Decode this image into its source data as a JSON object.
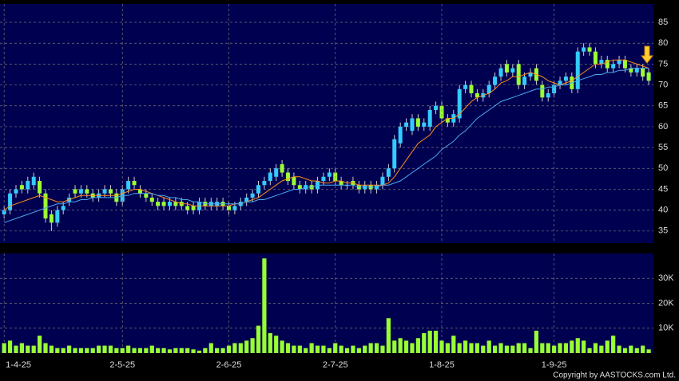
{
  "chart_data": [
    {
      "type": "candlestick",
      "open": [
        39,
        40,
        44,
        46,
        45,
        46,
        47,
        44,
        39,
        37,
        40,
        42,
        45,
        44,
        45,
        44,
        43,
        44,
        45,
        44,
        42,
        45,
        47,
        45,
        44,
        43,
        42,
        42,
        41,
        42,
        42,
        41,
        41,
        40,
        42,
        41,
        41,
        42,
        41,
        40,
        41,
        42,
        43,
        44,
        46,
        47,
        48,
        51,
        49,
        48,
        46,
        45,
        46,
        45,
        47,
        48,
        49,
        47,
        46,
        47,
        46,
        45,
        46,
        45,
        46,
        48,
        50,
        56,
        60,
        59,
        62,
        60,
        60,
        64,
        65,
        62,
        61,
        62,
        69,
        70,
        68,
        67,
        68,
        70,
        72,
        75,
        73,
        75,
        70,
        72,
        74,
        70,
        67,
        68,
        70,
        71,
        72,
        69,
        78,
        79,
        78,
        75,
        76,
        74,
        75,
        76,
        74,
        73,
        74,
        73
      ],
      "high": [
        41,
        45,
        46,
        47,
        48,
        49,
        48,
        45,
        40,
        41,
        42,
        44,
        46,
        46,
        46,
        45,
        45,
        46,
        46,
        45,
        46,
        48,
        48,
        46,
        45,
        44,
        43,
        43,
        43,
        43,
        43,
        42,
        42,
        43,
        43,
        43,
        43,
        43,
        42,
        42,
        43,
        44,
        45,
        47,
        48,
        50,
        51,
        52,
        50,
        49,
        47,
        47,
        47,
        48,
        49,
        50,
        50,
        48,
        47,
        48,
        47,
        47,
        47,
        47,
        49,
        51,
        58,
        61,
        62,
        63,
        63,
        62,
        65,
        66,
        66,
        63,
        64,
        70,
        71,
        71,
        69,
        69,
        71,
        73,
        75,
        76,
        75,
        76,
        73,
        74,
        75,
        71,
        69,
        71,
        72,
        73,
        73,
        79,
        80,
        80,
        79,
        77,
        77,
        76,
        77,
        77,
        75,
        75,
        75,
        74
      ],
      "low": [
        38,
        39,
        43,
        44,
        44,
        45,
        43,
        37,
        35,
        36,
        39,
        41,
        43,
        43,
        43,
        42,
        42,
        43,
        43,
        41,
        41,
        44,
        45,
        43,
        42,
        41,
        40,
        40,
        40,
        40,
        40,
        39,
        39,
        39,
        40,
        40,
        40,
        40,
        39,
        39,
        40,
        41,
        42,
        43,
        45,
        46,
        47,
        48,
        46,
        45,
        44,
        44,
        44,
        44,
        46,
        47,
        46,
        45,
        45,
        45,
        44,
        44,
        44,
        44,
        45,
        47,
        49,
        55,
        59,
        58,
        59,
        59,
        59,
        63,
        61,
        60,
        60,
        61,
        68,
        67,
        66,
        66,
        67,
        69,
        71,
        72,
        72,
        69,
        69,
        71,
        70,
        66,
        66,
        67,
        69,
        70,
        68,
        68,
        77,
        77,
        74,
        74,
        73,
        73,
        74,
        73,
        72,
        72,
        71,
        70
      ],
      "close": [
        40,
        44,
        45,
        45,
        47,
        48,
        44,
        38,
        37,
        40,
        41,
        43,
        44,
        45,
        44,
        43,
        44,
        45,
        44,
        42,
        45,
        47,
        46,
        44,
        43,
        42,
        41,
        41,
        42,
        41,
        41,
        40,
        40,
        42,
        41,
        42,
        42,
        41,
        40,
        41,
        42,
        43,
        44,
        46,
        47,
        49,
        50,
        49,
        47,
        46,
        45,
        46,
        45,
        47,
        48,
        49,
        47,
        46,
        46,
        46,
        45,
        46,
        45,
        46,
        48,
        50,
        57,
        60,
        61,
        62,
        60,
        61,
        64,
        65,
        62,
        61,
        63,
        69,
        70,
        68,
        67,
        68,
        70,
        72,
        74,
        73,
        74,
        70,
        72,
        73,
        71,
        67,
        68,
        70,
        71,
        72,
        69,
        78,
        79,
        78,
        75,
        76,
        74,
        75,
        76,
        74,
        73,
        74,
        72,
        71
      ],
      "lines": [
        {
          "color": "#ff8c1a",
          "values": [
            40,
            41,
            41.5,
            42,
            42.5,
            43,
            43.5,
            43,
            42.5,
            42,
            42,
            42.5,
            43,
            43.5,
            43.5,
            43.5,
            43.5,
            43.5,
            43.5,
            43.5,
            44,
            44.5,
            45,
            45,
            44.5,
            44,
            43.5,
            43,
            42.5,
            42,
            41.5,
            41.5,
            41,
            41,
            41,
            41,
            41,
            41,
            41,
            41.5,
            41.5,
            42,
            42.5,
            43,
            44,
            45,
            46,
            47,
            47.5,
            48,
            48,
            47.5,
            47,
            47,
            46.5,
            46.5,
            47,
            47,
            46.5,
            46.5,
            46,
            46,
            46,
            46,
            46,
            46.5,
            48,
            50,
            52,
            54,
            56,
            57,
            58,
            60,
            61,
            62,
            62,
            63,
            64.5,
            66,
            67,
            67.5,
            68,
            69,
            70.5,
            71,
            72,
            72,
            72.5,
            73,
            72.5,
            72,
            71,
            70.5,
            70,
            70.5,
            71,
            72,
            73,
            74,
            75,
            75,
            75.5,
            76,
            76,
            76,
            75.5,
            75,
            74.5,
            74
          ]
        },
        {
          "color": "#4aa8f0",
          "values": [
            37,
            37.5,
            38,
            38.5,
            39,
            39.5,
            40,
            40.5,
            41,
            41.5,
            41.5,
            42,
            42,
            42.5,
            42.5,
            43,
            43,
            43,
            43,
            43,
            43.5,
            43.5,
            44,
            44,
            44,
            44,
            43.5,
            43.5,
            43,
            43,
            42.5,
            42.5,
            42,
            42,
            41.5,
            41.5,
            41.5,
            41.5,
            41.5,
            41.5,
            41.5,
            42,
            42,
            42.5,
            42.5,
            43,
            43.5,
            44,
            44.5,
            45,
            45,
            45.5,
            45.5,
            46,
            46,
            46,
            46,
            46,
            46,
            46,
            45.5,
            45.5,
            45.5,
            45.5,
            46,
            46,
            46.5,
            47,
            48,
            49,
            50,
            51,
            52,
            53,
            54.5,
            55.5,
            56.5,
            58,
            59,
            60.5,
            62,
            63,
            64,
            65,
            66,
            66.5,
            67,
            67.5,
            68,
            68.5,
            69,
            69,
            69.5,
            69.5,
            70,
            70,
            70.5,
            71,
            71.5,
            72,
            72.5,
            72.5,
            73,
            73,
            73.5,
            73.5,
            74,
            74,
            74,
            74
          ]
        }
      ],
      "up_color": "#33ccff",
      "down_color": "#99ff33",
      "xlim": [
        -0.7,
        109.8
      ],
      "ylim": [
        32.1,
        89.4
      ],
      "yticks": [
        35,
        40,
        45,
        50,
        55,
        60,
        65,
        70,
        75,
        80,
        85
      ],
      "grid": true
    },
    {
      "type": "bar",
      "values": [
        4000,
        5000,
        3000,
        4000,
        3000,
        3000,
        7000,
        4000,
        3000,
        2000,
        2000,
        3000,
        2000,
        2000,
        2000,
        2000,
        3000,
        3000,
        3000,
        2000,
        2000,
        3000,
        2000,
        2000,
        2000,
        3000,
        2000,
        2000,
        1500,
        2000,
        2000,
        2000,
        1500,
        1000,
        2000,
        4000,
        2000,
        2000,
        3000,
        4000,
        4000,
        5000,
        6000,
        11000,
        38000,
        8000,
        7000,
        5000,
        4000,
        3000,
        3000,
        2000,
        4000,
        3000,
        3000,
        2000,
        4000,
        3000,
        2000,
        3000,
        2000,
        3000,
        4000,
        4000,
        3000,
        14000,
        5000,
        6000,
        5000,
        4000,
        6000,
        8000,
        9000,
        9000,
        5000,
        4000,
        7000,
        4000,
        5000,
        4000,
        4000,
        3000,
        5000,
        3000,
        4000,
        3000,
        3000,
        4000,
        4000,
        2000,
        9000,
        4000,
        4000,
        3000,
        4000,
        4000,
        5000,
        6000,
        5000,
        2000,
        4000,
        3000,
        5000,
        7000,
        3000,
        2000,
        3000,
        2000,
        3000,
        1500
      ],
      "color": "#99ff33",
      "xlim": [
        -0.7,
        109.8
      ],
      "ylim": [
        0,
        40000
      ],
      "yticks": [
        {
          "value": 10000,
          "label": "10K"
        },
        {
          "value": 20000,
          "label": "20K"
        },
        {
          "value": 30000,
          "label": "30K"
        }
      ],
      "xticks": [
        {
          "value": 0,
          "label": "1-4-25"
        },
        {
          "value": 20,
          "label": "2-5-25"
        },
        {
          "value": 38,
          "label": "2-6-25"
        },
        {
          "value": 56,
          "label": "2-7-25"
        },
        {
          "value": 74,
          "label": "1-8-25"
        },
        {
          "value": 93,
          "label": "1-9-25"
        }
      ],
      "grid": true
    }
  ],
  "copyright": "Copyright by AASTOCKS.com Ltd."
}
